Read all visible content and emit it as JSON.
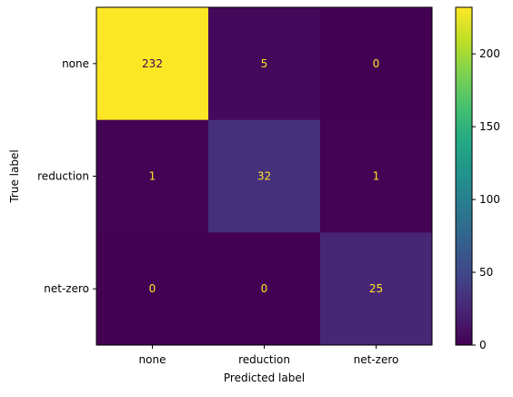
{
  "chart_data": {
    "type": "heatmap",
    "title": "",
    "xlabel": "Predicted label",
    "ylabel": "True label",
    "x_categories": [
      "none",
      "reduction",
      "net-zero"
    ],
    "y_categories": [
      "none",
      "reduction",
      "net-zero"
    ],
    "matrix": [
      [
        232,
        5,
        0
      ],
      [
        1,
        32,
        1
      ],
      [
        0,
        0,
        25
      ]
    ],
    "colormap": "viridis",
    "colorbar": {
      "range": [
        0,
        232
      ],
      "ticks": [
        0,
        50,
        100,
        150,
        200
      ]
    },
    "cell_text_colors": {
      "on_dark": "#fde725",
      "on_light": "#440154"
    }
  }
}
